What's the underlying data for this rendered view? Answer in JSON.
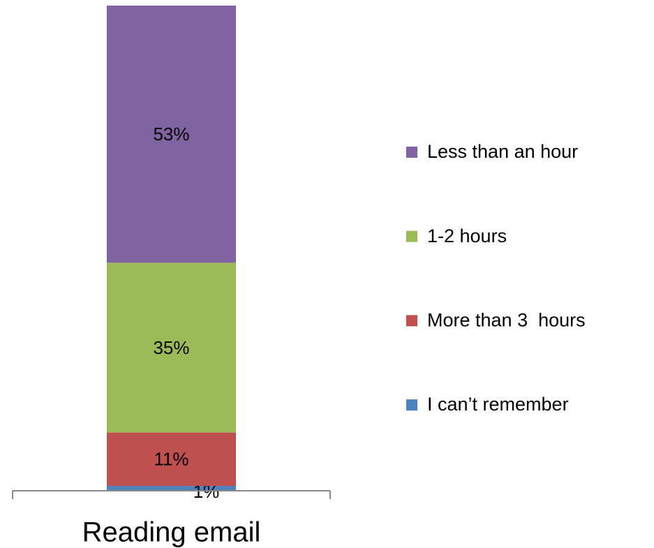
{
  "chart_data": {
    "type": "stacked_bar",
    "categories": [
      "Reading email"
    ],
    "ylim": [
      0,
      100
    ],
    "legend": "right",
    "series": [
      {
        "name": "I can’t remember",
        "color": "#4f81bd",
        "values": [
          1
        ],
        "value_labels": [
          "1%"
        ]
      },
      {
        "name": "More than 3  hours",
        "color": "#c0504d",
        "values": [
          11
        ],
        "value_labels": [
          "11%"
        ]
      },
      {
        "name": "1-2 hours",
        "color": "#9bbb59",
        "values": [
          35
        ],
        "value_labels": [
          "35%"
        ]
      },
      {
        "name": "Less than an hour",
        "color": "#8064a2",
        "values": [
          53
        ],
        "value_labels": [
          "53%"
        ]
      }
    ]
  }
}
